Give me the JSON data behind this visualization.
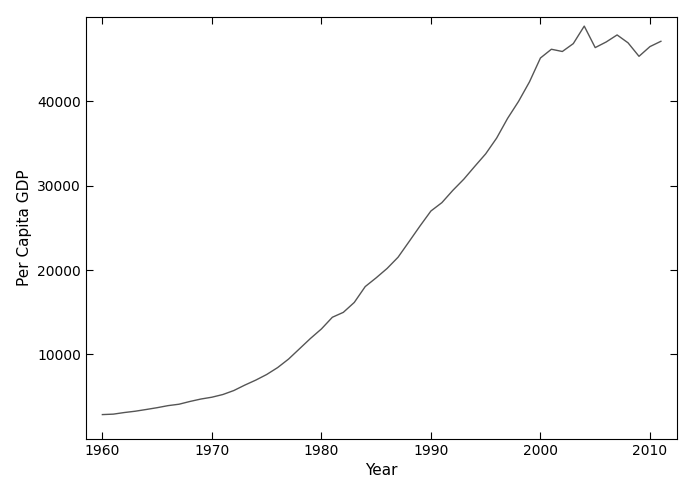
{
  "title": "",
  "xlabel": "Year",
  "ylabel": "Per Capita GDP",
  "line_color": "#555555",
  "line_width": 1.0,
  "background_color": "#ffffff",
  "xlim": [
    1958.5,
    2012.5
  ],
  "ylim": [
    0,
    50000
  ],
  "xticks": [
    1960,
    1970,
    1980,
    1990,
    2000,
    2010
  ],
  "yticks": [
    10000,
    20000,
    30000,
    40000
  ],
  "years": [
    1960,
    1961,
    1962,
    1963,
    1964,
    1965,
    1966,
    1967,
    1968,
    1969,
    1970,
    1971,
    1972,
    1973,
    1974,
    1975,
    1976,
    1977,
    1978,
    1979,
    1980,
    1981,
    1982,
    1983,
    1984,
    1985,
    1986,
    1987,
    1988,
    1989,
    1990,
    1991,
    1992,
    1993,
    1994,
    1995,
    1996,
    1997,
    1998,
    1999,
    2000,
    2001,
    2002,
    2003,
    2004,
    2005,
    2006,
    2007,
    2008,
    2009,
    2010,
    2011
  ],
  "gdp": [
    2881,
    2934,
    3124,
    3280,
    3484,
    3698,
    3942,
    4109,
    4436,
    4724,
    4939,
    5257,
    5728,
    6370,
    6959,
    7626,
    8445,
    9454,
    10675,
    11896,
    13022,
    14407,
    14986,
    16160,
    18039,
    19076,
    20188,
    21517,
    23355,
    25209,
    26990,
    27978,
    29432,
    30752,
    32271,
    33757,
    35621,
    37955,
    39965,
    42284,
    45106,
    46142,
    45876,
    46809,
    48882,
    46337,
    47001,
    47836,
    46901,
    45305,
    46456,
    47084
  ]
}
